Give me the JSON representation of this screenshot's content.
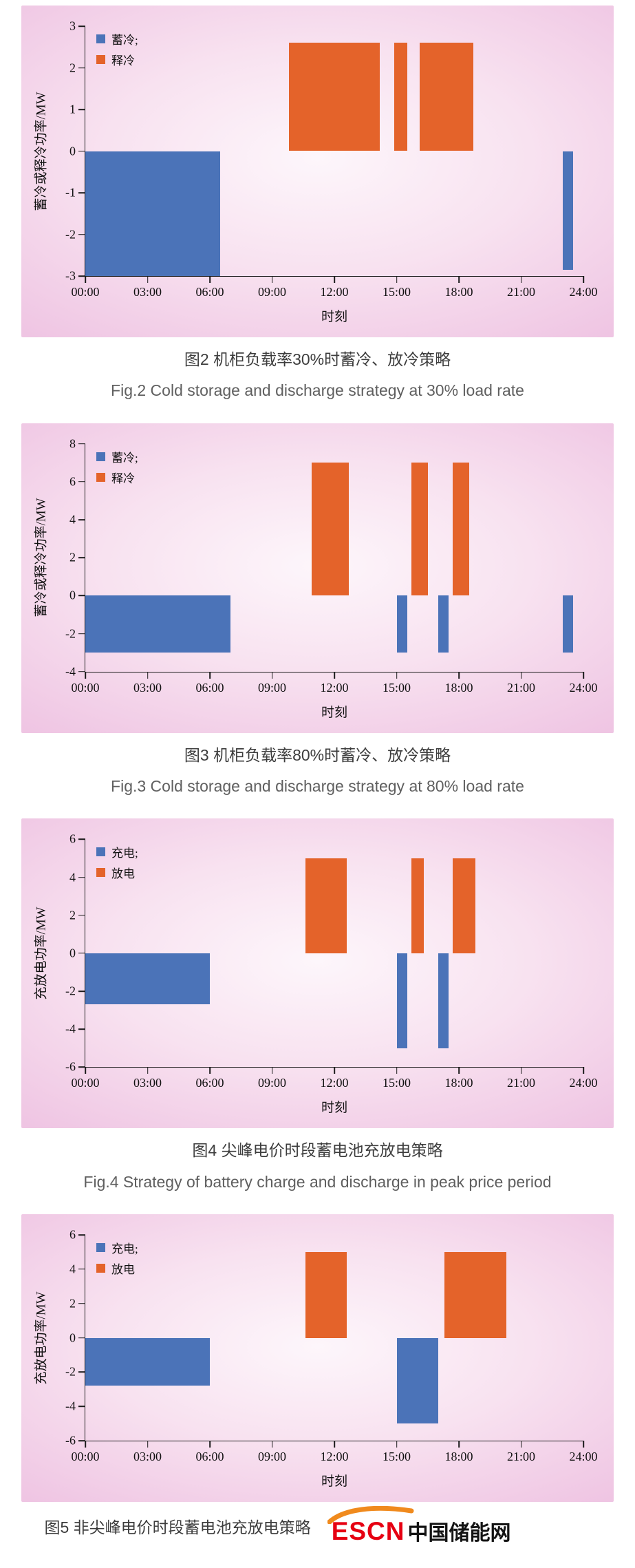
{
  "colors": {
    "storage_blue": "#4b73b8",
    "discharge_orange": "#e4632a",
    "panel_pink_edge": "#efc5e3",
    "panel_pink_center": "#fdf6fb",
    "axis_black": "#1a1a1a",
    "logo_red": "#e60012",
    "logo_orange": "#f08a1d"
  },
  "figures": [
    {
      "caption_zh": "图2  机柜负载率30%时蓄冷、放冷策略",
      "caption_en": "Fig.2  Cold storage and discharge strategy at 30% load rate"
    },
    {
      "caption_zh": "图3  机柜负载率80%时蓄冷、放冷策略",
      "caption_en": "Fig.3  Cold storage and discharge strategy at 80% load rate"
    },
    {
      "caption_zh": "图4  尖峰电价时段蓄电池充放电策略",
      "caption_en": "Fig.4  Strategy of battery charge and discharge in peak price period"
    },
    {
      "caption_zh": "图5  非尖峰电价时段蓄电池充放电策略"
    }
  ],
  "logo": {
    "en": "ESCN",
    "zh": "中国储能网"
  },
  "chart_data": [
    {
      "type": "bar",
      "title": "机柜负载率30%时蓄冷、放冷策略",
      "xlabel": "时刻",
      "ylabel": "蓄冷或释冷功率/MW",
      "xlim": [
        0,
        24
      ],
      "ylim": [
        -3,
        3
      ],
      "yticks": [
        -3,
        -2,
        -1,
        0,
        1,
        2,
        3
      ],
      "xticks": [
        {
          "v": 0,
          "label": "00:00"
        },
        {
          "v": 3,
          "label": "03:00"
        },
        {
          "v": 6,
          "label": "06:00"
        },
        {
          "v": 9,
          "label": "09:00"
        },
        {
          "v": 12,
          "label": "12:00"
        },
        {
          "v": 15,
          "label": "15:00"
        },
        {
          "v": 18,
          "label": "18:00"
        },
        {
          "v": 21,
          "label": "21:00"
        },
        {
          "v": 24,
          "label": "24:00"
        }
      ],
      "legend": [
        {
          "label": "蓄冷;",
          "key": "storage",
          "color": "#4b73b8"
        },
        {
          "label": "释冷",
          "key": "release",
          "color": "#e4632a"
        }
      ],
      "series": [
        {
          "name": "蓄冷",
          "key": "storage",
          "color": "#4b73b8",
          "bars": [
            {
              "start": 0,
              "end": 6.5,
              "value": -3.0
            },
            {
              "start": 23.0,
              "end": 23.5,
              "value": -2.85
            }
          ]
        },
        {
          "name": "释冷",
          "key": "release",
          "color": "#e4632a",
          "bars": [
            {
              "start": 9.8,
              "end": 14.2,
              "value": 2.6
            },
            {
              "start": 14.9,
              "end": 15.5,
              "value": 2.6
            },
            {
              "start": 16.1,
              "end": 18.7,
              "value": 2.6
            }
          ]
        }
      ]
    },
    {
      "type": "bar",
      "title": "机柜负载率80%时蓄冷、放冷策略",
      "xlabel": "时刻",
      "ylabel": "蓄冷或释冷功率/MW",
      "xlim": [
        0,
        24
      ],
      "ylim": [
        -4,
        8
      ],
      "yticks": [
        -4,
        -2,
        0,
        2,
        4,
        6,
        8
      ],
      "xticks": [
        {
          "v": 0,
          "label": "00:00"
        },
        {
          "v": 3,
          "label": "03:00"
        },
        {
          "v": 6,
          "label": "06:00"
        },
        {
          "v": 9,
          "label": "09:00"
        },
        {
          "v": 12,
          "label": "12:00"
        },
        {
          "v": 15,
          "label": "15:00"
        },
        {
          "v": 18,
          "label": "18:00"
        },
        {
          "v": 21,
          "label": "21:00"
        },
        {
          "v": 24,
          "label": "24:00"
        }
      ],
      "legend": [
        {
          "label": "蓄冷;",
          "key": "storage",
          "color": "#4b73b8"
        },
        {
          "label": "释冷",
          "key": "release",
          "color": "#e4632a"
        }
      ],
      "series": [
        {
          "name": "蓄冷",
          "key": "storage",
          "color": "#4b73b8",
          "bars": [
            {
              "start": 0,
              "end": 7.0,
              "value": -3.0
            },
            {
              "start": 15.0,
              "end": 15.5,
              "value": -3.0
            },
            {
              "start": 17.0,
              "end": 17.5,
              "value": -3.0
            },
            {
              "start": 23.0,
              "end": 23.5,
              "value": -3.0
            }
          ]
        },
        {
          "name": "释冷",
          "key": "release",
          "color": "#e4632a",
          "bars": [
            {
              "start": 10.9,
              "end": 12.7,
              "value": 7.0
            },
            {
              "start": 15.7,
              "end": 16.5,
              "value": 7.0
            },
            {
              "start": 17.7,
              "end": 18.5,
              "value": 7.0
            }
          ]
        }
      ]
    },
    {
      "type": "bar",
      "title": "尖峰电价时段蓄电池充放电策略",
      "xlabel": "时刻",
      "ylabel": "充放电功率/MW",
      "xlim": [
        0,
        24
      ],
      "ylim": [
        -6,
        6
      ],
      "yticks": [
        -6,
        -4,
        -2,
        0,
        2,
        4,
        6
      ],
      "xticks": [
        {
          "v": 0,
          "label": "00:00"
        },
        {
          "v": 3,
          "label": "03:00"
        },
        {
          "v": 6,
          "label": "06:00"
        },
        {
          "v": 9,
          "label": "09:00"
        },
        {
          "v": 12,
          "label": "12:00"
        },
        {
          "v": 15,
          "label": "15:00"
        },
        {
          "v": 18,
          "label": "18:00"
        },
        {
          "v": 21,
          "label": "21:00"
        },
        {
          "v": 24,
          "label": "24:00"
        }
      ],
      "legend": [
        {
          "label": "充电;",
          "key": "charge",
          "color": "#4b73b8"
        },
        {
          "label": "放电",
          "key": "discharge",
          "color": "#e4632a"
        }
      ],
      "series": [
        {
          "name": "充电",
          "key": "charge",
          "color": "#4b73b8",
          "bars": [
            {
              "start": 0,
              "end": 6.0,
              "value": -2.7
            },
            {
              "start": 15.0,
              "end": 15.5,
              "value": -5.0
            },
            {
              "start": 17.0,
              "end": 17.5,
              "value": -5.0
            }
          ]
        },
        {
          "name": "放电",
          "key": "discharge",
          "color": "#e4632a",
          "bars": [
            {
              "start": 10.6,
              "end": 12.6,
              "value": 5.0
            },
            {
              "start": 15.7,
              "end": 16.3,
              "value": 5.0
            },
            {
              "start": 17.7,
              "end": 18.8,
              "value": 5.0
            }
          ]
        }
      ]
    },
    {
      "type": "bar",
      "title": "非尖峰电价时段蓄电池充放电策略",
      "xlabel": "时刻",
      "ylabel": "充放电功率/MW",
      "xlim": [
        0,
        24
      ],
      "ylim": [
        -6,
        6
      ],
      "yticks": [
        -6,
        -4,
        -2,
        0,
        2,
        4,
        6
      ],
      "xticks": [
        {
          "v": 0,
          "label": "00:00"
        },
        {
          "v": 3,
          "label": "03:00"
        },
        {
          "v": 6,
          "label": "06:00"
        },
        {
          "v": 9,
          "label": "09:00"
        },
        {
          "v": 12,
          "label": "12:00"
        },
        {
          "v": 15,
          "label": "15:00"
        },
        {
          "v": 18,
          "label": "18:00"
        },
        {
          "v": 21,
          "label": "21:00"
        },
        {
          "v": 24,
          "label": "24:00"
        }
      ],
      "legend": [
        {
          "label": "充电;",
          "key": "charge",
          "color": "#4b73b8"
        },
        {
          "label": "放电",
          "key": "discharge",
          "color": "#e4632a"
        }
      ],
      "series": [
        {
          "name": "充电",
          "key": "charge",
          "color": "#4b73b8",
          "bars": [
            {
              "start": 0,
              "end": 6.0,
              "value": -2.8
            },
            {
              "start": 15.0,
              "end": 17.0,
              "value": -5.0
            }
          ]
        },
        {
          "name": "放电",
          "key": "discharge",
          "color": "#e4632a",
          "bars": [
            {
              "start": 10.6,
              "end": 12.6,
              "value": 5.0
            },
            {
              "start": 17.3,
              "end": 20.3,
              "value": 5.0
            }
          ]
        }
      ]
    }
  ]
}
